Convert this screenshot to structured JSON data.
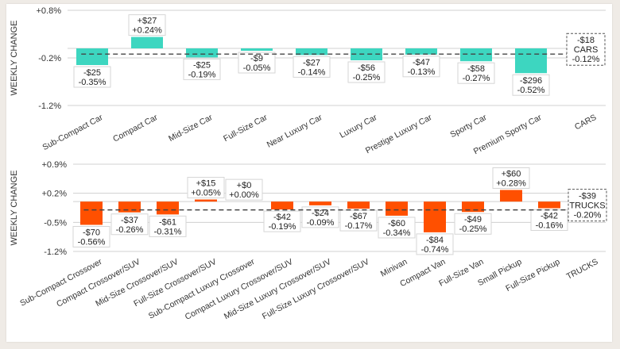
{
  "chart_data": [
    {
      "type": "bar",
      "title": "",
      "ylabel": "WEEKLY CHANGE",
      "xlabel": "",
      "ylim": [
        -1.2,
        0.8
      ],
      "yticks": [
        "+0.8%",
        "-0.2%",
        "-1.2%"
      ],
      "ytick_values": [
        0.8,
        -0.2,
        -1.2
      ],
      "color": "#3dd6c0",
      "categories": [
        "Sub-Compact Car",
        "Compact Car",
        "Mid-Size Car",
        "Full-Size Car",
        "Near Luxury Car",
        "Luxury Car",
        "Prestige Luxury Car",
        "Sporty Car",
        "Premium Sporty Car",
        "CARS"
      ],
      "values_pct": [
        -0.35,
        0.24,
        -0.19,
        -0.05,
        -0.14,
        -0.25,
        -0.13,
        -0.27,
        -0.52
      ],
      "values_usd": [
        "-$25",
        "+$27",
        "-$25",
        "-$9",
        "-$27",
        "-$56",
        "-$47",
        "-$58",
        "-$296"
      ],
      "labels_pct": [
        "-0.35%",
        "+0.24%",
        "-0.19%",
        "-0.05%",
        "-0.14%",
        "-0.25%",
        "-0.13%",
        "-0.27%",
        "-0.52%"
      ],
      "summary": {
        "name": "CARS",
        "usd": "-$18",
        "pct_label": "-0.12%",
        "pct": -0.12
      }
    },
    {
      "type": "bar",
      "title": "",
      "ylabel": "WEEKLY CHANGE",
      "xlabel": "",
      "ylim": [
        -1.2,
        0.9
      ],
      "yticks": [
        "+0.9%",
        "+0.2%",
        "-0.5%",
        "-1.2%"
      ],
      "ytick_values": [
        0.9,
        0.2,
        -0.5,
        -1.2
      ],
      "color": "#ff5000",
      "categories": [
        "Sub-Compact Crossover",
        "Compact Crossover/SUV",
        "Mid-Size Crossover/SUV",
        "Full-Size Crossover/SUV",
        "Sub-Compact Luxury Crossover",
        "Compact Luxury Crossover/SUV",
        "Mid-Size Luxury Crossover/SUV",
        "Full-Size Luxury Crossover/SUV",
        "Minivan",
        "Compact Van",
        "Full-Size Van",
        "Small Pickup",
        "Full-Size Pickup",
        "TRUCKS"
      ],
      "values_pct": [
        -0.56,
        -0.26,
        -0.31,
        0.05,
        0.0,
        -0.19,
        -0.09,
        -0.17,
        -0.34,
        -0.74,
        -0.25,
        0.28,
        -0.16
      ],
      "values_usd": [
        "-$70",
        "-$37",
        "-$61",
        "+$15",
        "+$0",
        "-$42",
        "-$24",
        "-$67",
        "-$60",
        "-$84",
        "-$49",
        "+$60",
        "-$42"
      ],
      "labels_pct": [
        "-0.56%",
        "-0.26%",
        "-0.31%",
        "+0.05%",
        "+0.00%",
        "-0.19%",
        "-0.09%",
        "-0.17%",
        "-0.34%",
        "-0.74%",
        "-0.25%",
        "+0.28%",
        "-0.16%"
      ],
      "summary": {
        "name": "TRUCKS",
        "usd": "-$39",
        "pct_label": "-0.20%",
        "pct": -0.2
      }
    }
  ]
}
